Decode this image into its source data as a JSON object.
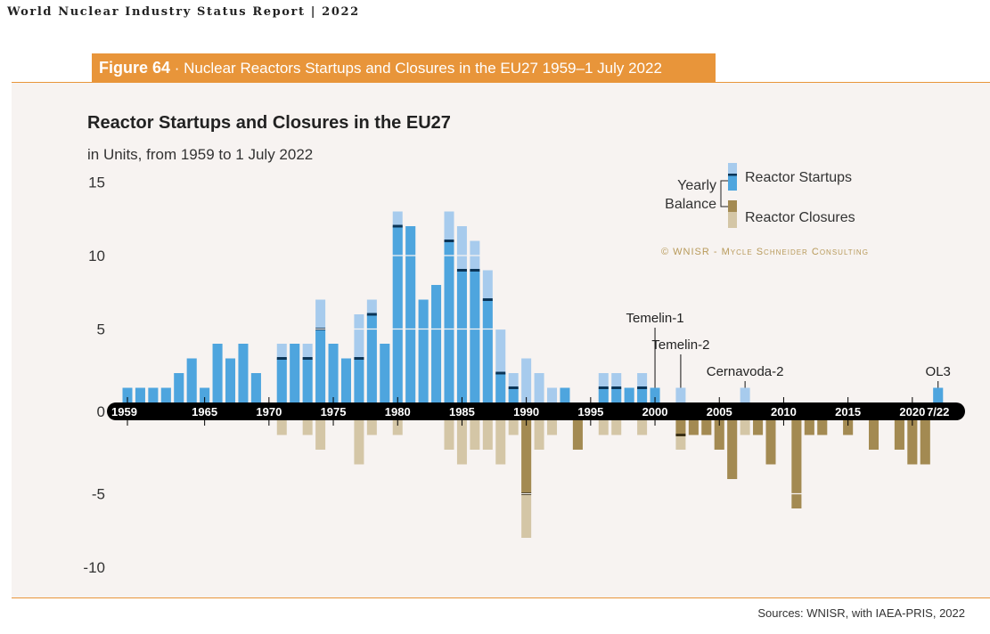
{
  "header": {
    "report": "World Nuclear Industry Status Report | 2022"
  },
  "figure": {
    "number": "Figure 64",
    "caption": " · Nuclear Reactors Startups and Closures in the EU27 1959–1 July 2022"
  },
  "sources": "Sources: WNISR, with IAEA-PRIS, 2022",
  "chart_data": {
    "type": "bar",
    "title": "Reactor Startups and Closures in the EU27",
    "subtitle": "in Units, from 1959 to 1 July 2022",
    "ylim": [
      -10,
      15
    ],
    "yticks": [
      15,
      10,
      5,
      0,
      -5,
      -10
    ],
    "xtick_labels": [
      {
        "year": 1959,
        "label": "1959"
      },
      {
        "year": 1965,
        "label": "1965"
      },
      {
        "year": 1970,
        "label": "1970"
      },
      {
        "year": 1975,
        "label": "1975"
      },
      {
        "year": 1980,
        "label": "1980"
      },
      {
        "year": 1985,
        "label": "1985"
      },
      {
        "year": 1990,
        "label": "1990"
      },
      {
        "year": 1995,
        "label": "1995"
      },
      {
        "year": 2000,
        "label": "2000"
      },
      {
        "year": 2005,
        "label": "2005"
      },
      {
        "year": 2010,
        "label": "2010"
      },
      {
        "year": 2015,
        "label": "2015"
      },
      {
        "year": 2020,
        "label": "2020"
      },
      {
        "year": 2022,
        "label": "7/22"
      }
    ],
    "years": [
      1959,
      1960,
      1961,
      1962,
      1963,
      1964,
      1965,
      1966,
      1967,
      1968,
      1969,
      1970,
      1971,
      1972,
      1973,
      1974,
      1975,
      1976,
      1977,
      1978,
      1979,
      1980,
      1981,
      1982,
      1983,
      1984,
      1985,
      1986,
      1987,
      1988,
      1989,
      1990,
      1991,
      1992,
      1993,
      1994,
      1995,
      1996,
      1997,
      1998,
      1999,
      2000,
      2001,
      2002,
      2003,
      2004,
      2005,
      2006,
      2007,
      2008,
      2009,
      2010,
      2011,
      2012,
      2013,
      2014,
      2015,
      2016,
      2017,
      2018,
      2019,
      2020,
      2021,
      2022
    ],
    "series": [
      {
        "name": "Reactor Startups",
        "values": [
          1,
          1,
          1,
          1,
          2,
          3,
          1,
          4,
          3,
          4,
          2,
          0,
          4,
          4,
          4,
          7,
          4,
          3,
          6,
          7,
          4,
          13,
          12,
          7,
          8,
          13,
          12,
          11,
          9,
          5,
          2,
          3,
          2,
          1,
          1,
          0,
          0,
          2,
          2,
          1,
          2,
          1,
          0,
          1,
          0,
          0,
          0,
          0,
          1,
          0,
          0,
          0,
          0,
          0,
          0,
          0,
          0,
          0,
          0,
          0,
          0,
          0,
          0,
          1
        ]
      },
      {
        "name": "Reactor Closures",
        "values": [
          0,
          0,
          0,
          0,
          0,
          0,
          0,
          0,
          0,
          0,
          0,
          0,
          1,
          0,
          1,
          2,
          0,
          0,
          3,
          1,
          0,
          1,
          0,
          0,
          0,
          2,
          3,
          2,
          2,
          3,
          1,
          8,
          2,
          1,
          0,
          2,
          0,
          1,
          1,
          0,
          1,
          0,
          0,
          2,
          1,
          1,
          2,
          4,
          1,
          1,
          3,
          0,
          6,
          1,
          1,
          0,
          1,
          0,
          2,
          0,
          2,
          3,
          3,
          0
        ]
      }
    ],
    "legend": {
      "balance_label_1": "Yearly",
      "balance_label_2": "Balance",
      "startups": "Reactor Startups",
      "closures": "Reactor Closures",
      "placement": "top-right"
    },
    "copyright": "© WNISR - Mycle Schneider Consulting",
    "annotations": [
      {
        "year": 2000,
        "label": "Temelin-1"
      },
      {
        "year": 2002,
        "label": "Temelin-2"
      },
      {
        "year": 2007,
        "label": "Cernavoda-2"
      },
      {
        "year": 2022,
        "label": "OL3"
      }
    ],
    "colors": {
      "startup_light": "#a7cbed",
      "startup_balance": "#4ea5de",
      "balance_marker": "#0b3557",
      "closure_balance": "#a38a52",
      "closure_light": "#d4c6a6",
      "axis_band": "#000000"
    }
  }
}
